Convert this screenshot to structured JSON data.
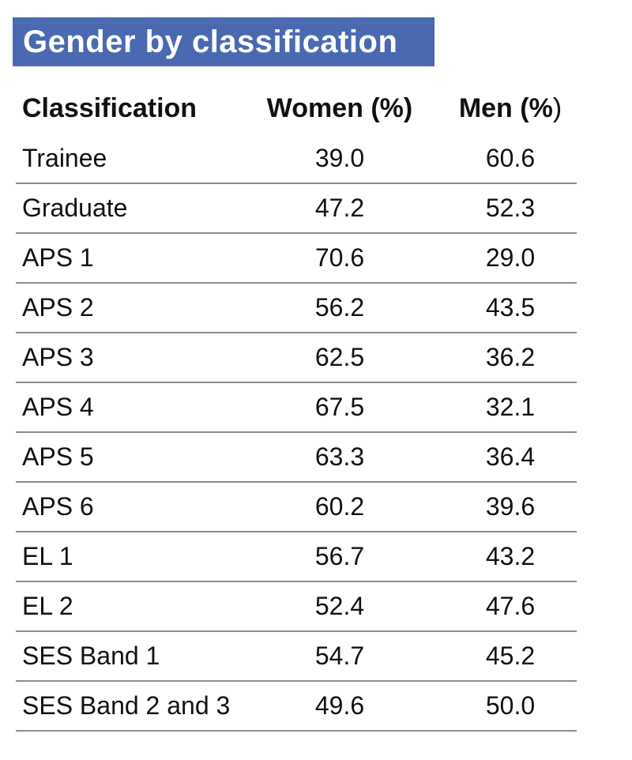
{
  "title": "Gender by classification",
  "colors": {
    "banner_bg": "#4a69b1",
    "banner_text": "#ffffff",
    "divider": "#8c8c8c",
    "text": "#111111",
    "background": "#ffffff"
  },
  "table": {
    "headers": {
      "classification": "Classification",
      "women": "Women (%)",
      "men_bold": "Men (%",
      "men_paren": ")"
    },
    "rows": [
      {
        "classification": "Trainee",
        "women": "39.0",
        "men": "60.6"
      },
      {
        "classification": "Graduate",
        "women": "47.2",
        "men": "52.3"
      },
      {
        "classification": "APS 1",
        "women": "70.6",
        "men": "29.0"
      },
      {
        "classification": "APS 2",
        "women": "56.2",
        "men": "43.5"
      },
      {
        "classification": "APS 3",
        "women": "62.5",
        "men": "36.2"
      },
      {
        "classification": "APS 4",
        "women": "67.5",
        "men": "32.1"
      },
      {
        "classification": "APS 5",
        "women": "63.3",
        "men": "36.4"
      },
      {
        "classification": "APS 6",
        "women": "60.2",
        "men": "39.6"
      },
      {
        "classification": "EL 1",
        "women": "56.7",
        "men": "43.2"
      },
      {
        "classification": "EL 2",
        "women": "52.4",
        "men": "47.6"
      },
      {
        "classification": "SES Band 1",
        "women": "54.7",
        "men": "45.2"
      },
      {
        "classification": "SES Band 2 and 3",
        "women": "49.6",
        "men": "50.0"
      }
    ]
  },
  "chart_data": {
    "type": "table",
    "title": "Gender by classification",
    "columns": [
      "Classification",
      "Women (%)",
      "Men (%)"
    ],
    "categories": [
      "Trainee",
      "Graduate",
      "APS 1",
      "APS 2",
      "APS 3",
      "APS 4",
      "APS 5",
      "APS 6",
      "EL 1",
      "EL 2",
      "SES Band 1",
      "SES Band 2 and 3"
    ],
    "series": [
      {
        "name": "Women (%)",
        "values": [
          39.0,
          47.2,
          70.6,
          56.2,
          62.5,
          67.5,
          63.3,
          60.2,
          56.7,
          52.4,
          54.7,
          49.6
        ]
      },
      {
        "name": "Men (%)",
        "values": [
          60.6,
          52.3,
          29.0,
          43.5,
          36.2,
          32.1,
          36.4,
          39.6,
          43.2,
          47.6,
          45.2,
          50.0
        ]
      }
    ],
    "layout": {
      "header_bold": true,
      "row_dividers": true,
      "grid": "horizontal-only",
      "legend_position": "none"
    }
  }
}
